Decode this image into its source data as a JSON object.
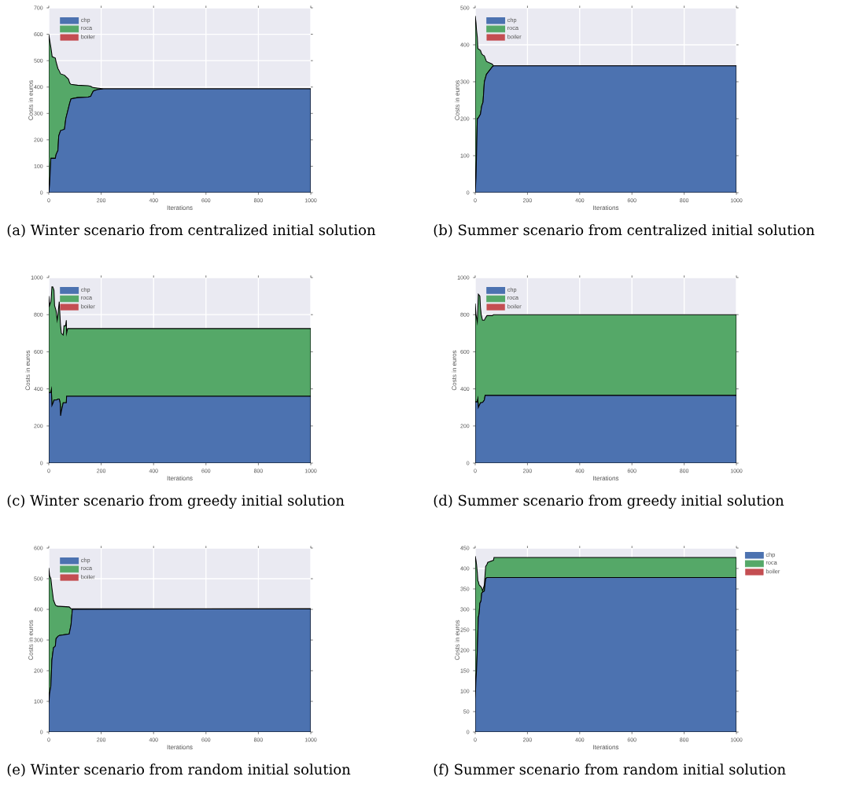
{
  "chart_data": [
    {
      "type": "area",
      "stacked": true,
      "title": "(a) Winter scenario from centralized initial solution",
      "xlabel": "Iterations",
      "ylabel": "Costs in euros",
      "grid": true,
      "legend": "top left",
      "xlim": [
        0,
        1000
      ],
      "ylim": [
        0,
        700
      ],
      "xticks": [
        0,
        200,
        400,
        600,
        800,
        1000
      ],
      "yticks": [
        0,
        100,
        200,
        300,
        400,
        500,
        600,
        700
      ],
      "x": [
        0,
        3,
        8,
        13,
        25,
        28,
        35,
        38,
        45,
        60,
        65,
        75,
        80,
        85,
        110,
        150,
        160,
        165,
        170,
        185,
        210,
        1000
      ],
      "series": [
        {
          "name": "chp",
          "color": "#4c72b0",
          "values": [
            0,
            30,
            130,
            130,
            130,
            145,
            160,
            215,
            235,
            240,
            280,
            320,
            340,
            355,
            360,
            362,
            365,
            375,
            385,
            390,
            393,
            393
          ]
        },
        {
          "name": "roca",
          "color": "#55a868",
          "values": [
            600,
            550,
            420,
            385,
            380,
            350,
            310,
            250,
            215,
            205,
            160,
            110,
            75,
            55,
            47,
            43,
            38,
            25,
            13,
            6,
            0,
            0
          ]
        },
        {
          "name": "boiler",
          "color": "#c44e52",
          "values": [
            null,
            null,
            null,
            null,
            null,
            null,
            null,
            null,
            null,
            null,
            null,
            null,
            null,
            null,
            null,
            null,
            null,
            null,
            null,
            null,
            null,
            null
          ]
        }
      ]
    },
    {
      "type": "area",
      "stacked": true,
      "title": "(b) Summer scenario from centralized initial solution",
      "xlabel": "Iterations",
      "ylabel": "Costs in euros",
      "grid": true,
      "legend": "top left",
      "xlim": [
        0,
        1000
      ],
      "ylim": [
        0,
        500
      ],
      "xticks": [
        0,
        200,
        400,
        600,
        800,
        1000
      ],
      "yticks": [
        0,
        100,
        200,
        300,
        400,
        500
      ],
      "x": [
        0,
        3,
        5,
        8,
        10,
        20,
        25,
        30,
        35,
        43,
        65,
        70,
        1000
      ],
      "series": [
        {
          "name": "chp",
          "color": "#4c72b0",
          "values": [
            0,
            40,
            100,
            200,
            200,
            212,
            235,
            245,
            300,
            320,
            340,
            343,
            343
          ]
        },
        {
          "name": "roca",
          "color": "#55a868",
          "values": [
            478,
            420,
            340,
            220,
            190,
            173,
            140,
            127,
            70,
            35,
            8,
            0,
            0
          ]
        },
        {
          "name": "boiler",
          "color": "#c44e52",
          "values": [
            null,
            null,
            null,
            null,
            null,
            null,
            null,
            null,
            null,
            null,
            null,
            null,
            null
          ]
        }
      ]
    },
    {
      "type": "area",
      "stacked": true,
      "title": "(c) Winter scenario from greedy initial solution",
      "xlabel": "Iterations",
      "ylabel": "Costs in euros",
      "grid": true,
      "legend": "top left",
      "xlim": [
        0,
        1000
      ],
      "ylim": [
        0,
        1000
      ],
      "xticks": [
        0,
        200,
        400,
        600,
        800,
        1000
      ],
      "yticks": [
        0,
        200,
        400,
        600,
        800,
        1000
      ],
      "x": [
        0,
        3,
        8,
        10,
        12,
        15,
        18,
        20,
        22,
        28,
        32,
        35,
        40,
        44,
        45,
        48,
        55,
        58,
        64,
        67,
        68,
        72,
        1000
      ],
      "series": [
        {
          "name": "chp",
          "color": "#4c72b0",
          "values": [
            380,
            380,
            380,
            395,
            310,
            320,
            330,
            340,
            340,
            340,
            342,
            345,
            345,
            320,
            255,
            280,
            325,
            325,
            325,
            325,
            360,
            360,
            360
          ]
        },
        {
          "name": "roca",
          "color": "#55a868",
          "values": [
            520,
            470,
            490,
            505,
            640,
            630,
            610,
            590,
            510,
            480,
            428,
            455,
            525,
            440,
            485,
            420,
            365,
            415,
            415,
            445,
            340,
            365,
            365
          ]
        },
        {
          "name": "boiler",
          "color": "#c44e52",
          "values": [
            null,
            null,
            null,
            null,
            null,
            null,
            null,
            null,
            null,
            null,
            null,
            null,
            null,
            null,
            null,
            null,
            null,
            null,
            null,
            null,
            null,
            null,
            null
          ]
        }
      ]
    },
    {
      "type": "area",
      "stacked": true,
      "title": "(d) Summer scenario from greedy initial solution",
      "xlabel": "Iterations",
      "ylabel": "Costs in euros",
      "grid": true,
      "legend": "top left",
      "xlim": [
        0,
        1000
      ],
      "ylim": [
        0,
        1000
      ],
      "xticks": [
        0,
        200,
        400,
        600,
        800,
        1000
      ],
      "yticks": [
        0,
        200,
        400,
        600,
        800,
        1000
      ],
      "x": [
        0,
        3,
        8,
        10,
        12,
        15,
        18,
        20,
        23,
        28,
        30,
        35,
        38,
        45,
        65,
        70,
        1000
      ],
      "series": [
        {
          "name": "chp",
          "color": "#4c72b0",
          "values": [
            330,
            330,
            330,
            345,
            300,
            310,
            318,
            325,
            325,
            327,
            330,
            340,
            365,
            365,
            365,
            365,
            365
          ]
        },
        {
          "name": "roca",
          "color": "#55a868",
          "values": [
            530,
            470,
            430,
            485,
            610,
            595,
            582,
            515,
            475,
            443,
            440,
            430,
            415,
            430,
            430,
            435,
            435
          ]
        },
        {
          "name": "boiler",
          "color": "#c44e52",
          "values": [
            null,
            null,
            null,
            null,
            null,
            null,
            null,
            null,
            null,
            null,
            null,
            null,
            null,
            null,
            null,
            null,
            null
          ]
        }
      ]
    },
    {
      "type": "area",
      "stacked": true,
      "title": "(e) Winter scenario from random initial solution",
      "xlabel": "Iterations",
      "ylabel": "Costs in euros",
      "grid": true,
      "legend": "top left",
      "xlim": [
        0,
        1000
      ],
      "ylim": [
        0,
        600
      ],
      "xticks": [
        0,
        200,
        400,
        600,
        800,
        1000
      ],
      "yticks": [
        0,
        100,
        200,
        300,
        400,
        500,
        600
      ],
      "x": [
        0,
        3,
        8,
        12,
        18,
        25,
        28,
        35,
        40,
        78,
        85,
        90,
        1000
      ],
      "series": [
        {
          "name": "chp",
          "color": "#4c72b0",
          "values": [
            90,
            125,
            150,
            235,
            275,
            280,
            305,
            312,
            315,
            320,
            350,
            400,
            402
          ]
        },
        {
          "name": "roca",
          "color": "#55a868",
          "values": [
            445,
            385,
            350,
            235,
            155,
            135,
            107,
            98,
            95,
            88,
            52,
            2,
            0
          ]
        },
        {
          "name": "boiler",
          "color": "#c44e52",
          "values": [
            null,
            null,
            null,
            null,
            null,
            null,
            null,
            null,
            null,
            null,
            null,
            null,
            null
          ]
        }
      ]
    },
    {
      "type": "area",
      "stacked": true,
      "title": "(f) Summer scenario from random initial solution",
      "xlabel": "Iterations",
      "ylabel": "Costs in euros",
      "grid": true,
      "legend": "right",
      "xlim": [
        0,
        1000
      ],
      "ylim": [
        0,
        450
      ],
      "xticks": [
        0,
        200,
        400,
        600,
        800,
        1000
      ],
      "yticks": [
        0,
        50,
        100,
        150,
        200,
        250,
        300,
        350,
        400,
        450
      ],
      "x": [
        0,
        3,
        5,
        8,
        10,
        12,
        15,
        18,
        22,
        25,
        28,
        35,
        40,
        45,
        48,
        70,
        72,
        1000
      ],
      "series": [
        {
          "name": "chp",
          "color": "#4c72b0",
          "values": [
            80,
            130,
            150,
            200,
            240,
            280,
            290,
            315,
            320,
            340,
            342,
            345,
            375,
            378,
            378,
            378,
            378,
            378
          ]
        },
        {
          "name": "roca",
          "color": "#55a868",
          "values": [
            350,
            290,
            260,
            190,
            130,
            88,
            70,
            43,
            35,
            12,
            3,
            15,
            30,
            32,
            37,
            42,
            49,
            49
          ]
        },
        {
          "name": "boiler",
          "color": "#c44e52",
          "values": [
            null,
            null,
            null,
            null,
            null,
            null,
            null,
            null,
            null,
            null,
            null,
            null,
            null,
            null,
            null,
            null,
            null,
            null
          ]
        }
      ]
    }
  ]
}
